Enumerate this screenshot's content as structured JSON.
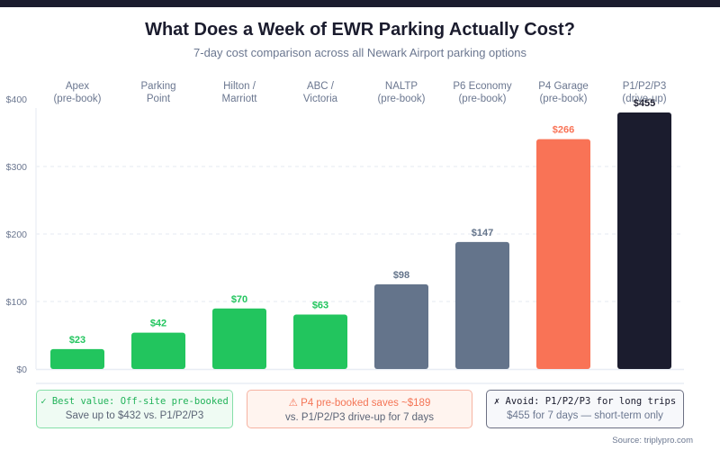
{
  "header": {
    "title": "What Does a Week of EWR Parking Actually Cost?",
    "subtitle": "7-day cost comparison across all Newark Airport parking options"
  },
  "chart_data": {
    "type": "bar",
    "title": "What Does a Week of EWR Parking Actually Cost?",
    "subtitle": "7-day cost comparison across all Newark Airport parking options",
    "xlabel": "",
    "ylabel": "",
    "ylim": [
      0,
      400
    ],
    "yticks": [
      0,
      100,
      200,
      300,
      400
    ],
    "ytick_labels": [
      "$0",
      "$100",
      "$200",
      "$300",
      "$400"
    ],
    "grid": true,
    "categories": [
      [
        "Apex",
        "(pre-book)"
      ],
      [
        "Parking",
        "Point"
      ],
      [
        "Hilton /",
        "Marriott"
      ],
      [
        "ABC /",
        "Victoria"
      ],
      [
        "NALTP",
        "(pre-book)"
      ],
      [
        "P6 Economy",
        "(pre-book)"
      ],
      [
        "P4 Garage",
        "(pre-book)"
      ],
      [
        "P1/P2/P3",
        "(drive-up)"
      ]
    ],
    "values": [
      23,
      42,
      70,
      63,
      98,
      147,
      266,
      455
    ],
    "value_labels": [
      "$23",
      "$42",
      "$70",
      "$63",
      "$98",
      "$147",
      "$266",
      "$455"
    ],
    "bar_colors": [
      "#22c55e",
      "#22c55e",
      "#22c55e",
      "#22c55e",
      "#64748b",
      "#64748b",
      "#f97356",
      "#1b1c2e"
    ],
    "label_colors": [
      "#22c55e",
      "#22c55e",
      "#22c55e",
      "#22c55e",
      "#64748b",
      "#64748b",
      "#f97356",
      "#1b1c2e"
    ]
  },
  "callouts": [
    {
      "icon": "✓",
      "headline": "Best value: Off-site pre-booked",
      "detail": "Save up to $432 vs. P1/P2/P3"
    },
    {
      "icon": "⚠",
      "headline": "P4 pre-booked saves ~$189",
      "detail": "vs. P1/P2/P3 drive-up for 7 days"
    },
    {
      "icon": "✗",
      "headline": "Avoid: P1/P2/P3 for long trips",
      "detail": "$455 for 7 days — short-term only"
    }
  ],
  "footer": {
    "source": "Source: triplypro.com"
  }
}
